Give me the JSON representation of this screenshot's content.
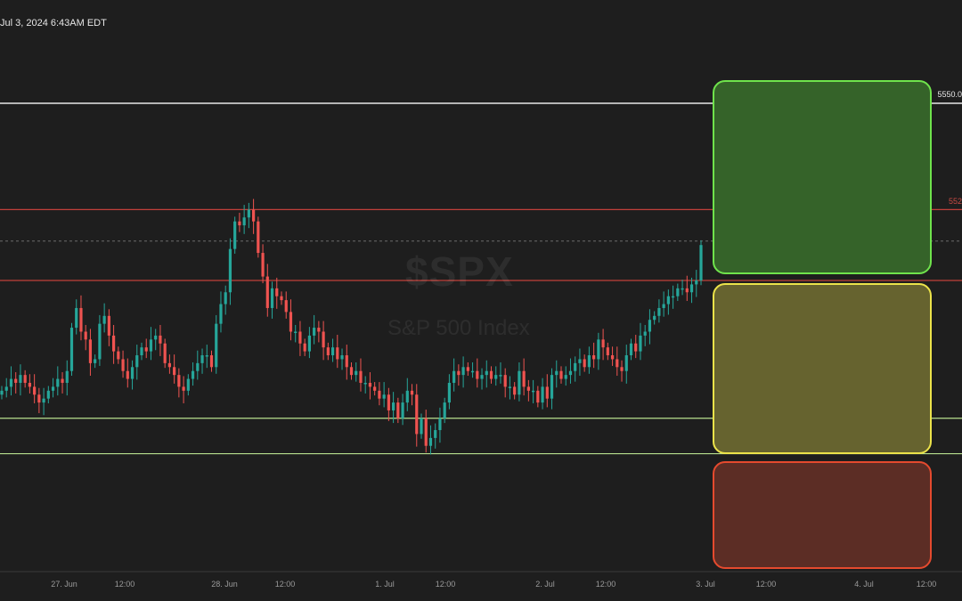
{
  "header": {
    "timestamp": "Jul 3, 2024 6:43AM EDT"
  },
  "watermark": {
    "ticker": "$SPX",
    "name": "S&P 500 Index"
  },
  "colors": {
    "background": "#1e1e1e",
    "up": "#26a69a",
    "down": "#ef5350",
    "white_line": "#e8e8e8",
    "red_line": "#c2403a",
    "green_line": "#b7e08e"
  },
  "price_labels": {
    "white": "5550.0",
    "red": "552"
  },
  "chart_data": {
    "type": "candlestick",
    "title": "",
    "x_ticks": [
      "27. Jun",
      "12:00",
      "28. Jun",
      "12:00",
      "1. Jul",
      "12:00",
      "2. Jul",
      "12:00",
      "3. Jul",
      "12:00",
      "4. Jul",
      "12:00"
    ],
    "y_range": [
      5420,
      5560
    ],
    "horizontal_levels": [
      {
        "value": 5550,
        "color": "white"
      },
      {
        "value": 5523,
        "color": "red"
      },
      {
        "value": 5515,
        "color": "dashed-gray"
      },
      {
        "value": 5505,
        "color": "red"
      },
      {
        "value": 5470,
        "color": "green"
      },
      {
        "value": 5461,
        "color": "green"
      }
    ],
    "zones": [
      {
        "name": "green-zone",
        "from": 5505,
        "to": 5556
      },
      {
        "name": "yellow-zone",
        "from": 5461,
        "to": 5505
      },
      {
        "name": "red-zone",
        "from": 5420,
        "to": 5460
      }
    ],
    "closes": [
      5477,
      5478,
      5480,
      5479,
      5481,
      5479,
      5478,
      5476,
      5474,
      5475,
      5477,
      5478,
      5480,
      5479,
      5482,
      5493,
      5498,
      5492,
      5490,
      5484,
      5485,
      5494,
      5496,
      5491,
      5487,
      5485,
      5482,
      5480,
      5483,
      5486,
      5488,
      5487,
      5490,
      5491,
      5489,
      5484,
      5483,
      5481,
      5478,
      5477,
      5480,
      5482,
      5484,
      5486,
      5486,
      5483,
      5494,
      5499,
      5502,
      5513,
      5520,
      5519,
      5521,
      5523,
      5520,
      5512,
      5506,
      5498,
      5503,
      5501,
      5500,
      5497,
      5492,
      5492,
      5489,
      5487,
      5491,
      5493,
      5492,
      5488,
      5486,
      5488,
      5485,
      5486,
      5483,
      5481,
      5482,
      5479,
      5479,
      5478,
      5477,
      5475,
      5476,
      5472,
      5474,
      5470,
      5474,
      5477,
      5476,
      5466,
      5470,
      5463,
      5465,
      5467,
      5470,
      5474,
      5479,
      5482,
      5481,
      5483,
      5482,
      5482,
      5480,
      5481,
      5482,
      5480,
      5481,
      5481,
      5478,
      5478,
      5476,
      5482,
      5478,
      5477,
      5477,
      5474,
      5478,
      5475,
      5481,
      5482,
      5480,
      5481,
      5482,
      5484,
      5485,
      5483,
      5486,
      5485,
      5490,
      5488,
      5486,
      5485,
      5483,
      5482,
      5486,
      5489,
      5487,
      5491,
      5492,
      5495,
      5496,
      5498,
      5499,
      5501,
      5501,
      5503,
      5503,
      5502,
      5504,
      5505,
      5514
    ]
  }
}
